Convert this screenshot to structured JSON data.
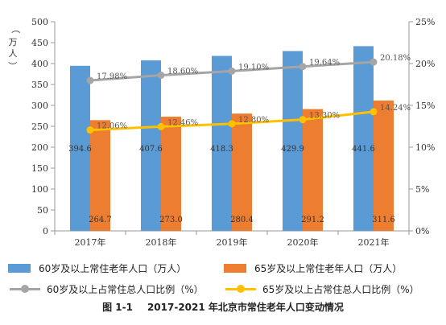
{
  "chart_data": {
    "type": "bar",
    "categories": [
      "2017年",
      "2018年",
      "2019年",
      "2020年",
      "2021年"
    ],
    "ylabel": "（万人）",
    "ylim": [
      0,
      500
    ],
    "yticks": [
      "0",
      "50",
      "100",
      "150",
      "200",
      "250",
      "300",
      "350",
      "400",
      "450",
      "500"
    ],
    "y2lim": [
      0,
      25
    ],
    "y2ticks": [
      "0%",
      "5%",
      "10%",
      "15%",
      "20%",
      "25%"
    ],
    "grid": false,
    "legend_position": "bottom",
    "series": [
      {
        "name": "60岁及以上常住老年人口（万人）",
        "type": "bar",
        "axis": "left",
        "color": "#5B9BD5",
        "values": [
          394.6,
          407.6,
          418.3,
          429.9,
          441.6
        ],
        "labels": [
          "394.6",
          "407.6",
          "418.3",
          "429.9",
          "441.6"
        ]
      },
      {
        "name": "65岁及以上常住老年人口（万人）",
        "type": "bar",
        "axis": "left",
        "color": "#ED7D31",
        "values": [
          264.7,
          273.0,
          280.4,
          291.2,
          311.6
        ],
        "labels": [
          "264.7",
          "273.0",
          "280.4",
          "291.2",
          "311.6"
        ]
      },
      {
        "name": "60岁及以上占常住总人口比例（%）",
        "type": "line",
        "axis": "right",
        "color": "#A5A5A5",
        "values": [
          17.98,
          18.6,
          19.1,
          19.64,
          20.18
        ],
        "labels": [
          "17.98%",
          "18.60%",
          "19.10%",
          "19.64%",
          "20.18%"
        ]
      },
      {
        "name": "65岁及以上占常住总人口比例（%）",
        "type": "line",
        "axis": "right",
        "color": "#FFC000",
        "values": [
          12.06,
          12.46,
          12.8,
          13.3,
          14.24
        ],
        "labels": [
          "12.06%",
          "12.46%",
          "12.80%",
          "13.30%",
          "14.24%"
        ]
      }
    ]
  },
  "caption": {
    "figure_number": "图 1-1",
    "title": "2017-2021 年北京市常住老年人口变动情况"
  }
}
